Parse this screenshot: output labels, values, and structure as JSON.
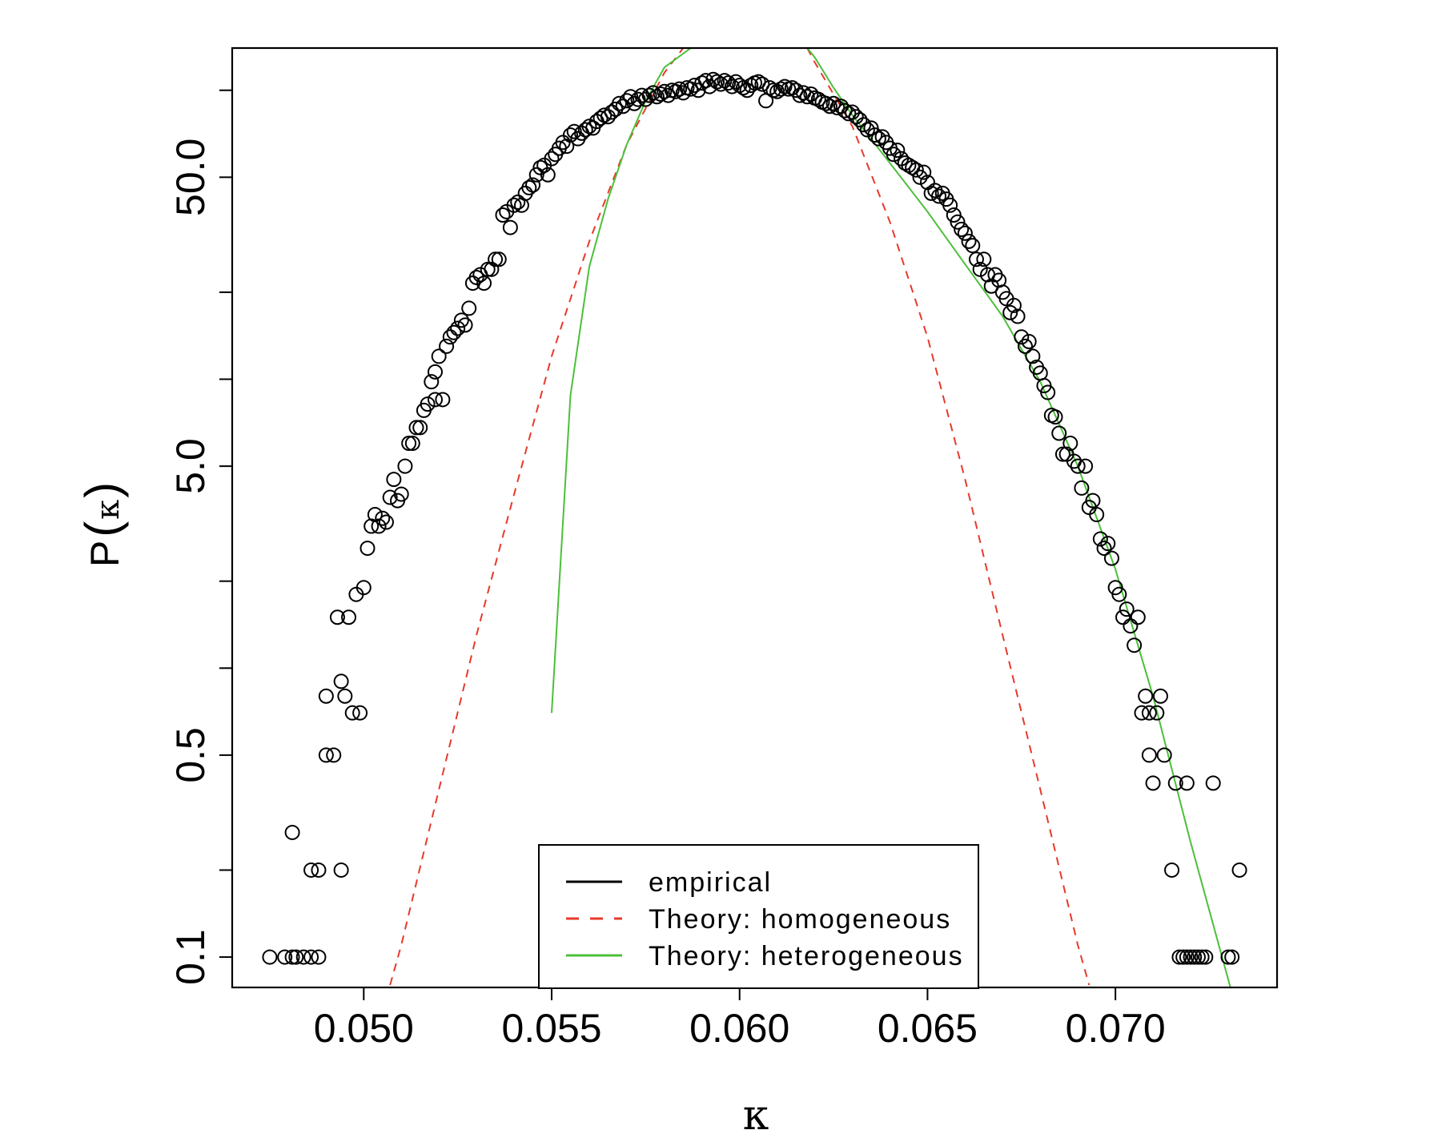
{
  "chart_data": {
    "type": "scatter",
    "title": "",
    "xlabel": "κ",
    "ylabel": "P(κ)",
    "ylabel_parts": {
      "prefix": "P",
      "open": "(",
      "symbol": "κ",
      "close": ")"
    },
    "x_scale": "linear",
    "y_scale": "log",
    "xlim": [
      0.0465,
      0.0743
    ],
    "ylim": [
      0.0785,
      140
    ],
    "x_ticks": [
      0.05,
      0.055,
      0.06,
      0.065,
      0.07
    ],
    "x_tick_labels": [
      "0.050",
      "0.055",
      "0.060",
      "0.065",
      "0.070"
    ],
    "y_ticks": [
      0.1,
      0.2,
      0.5,
      1,
      2,
      5,
      10,
      20,
      50,
      100
    ],
    "y_tick_labels": [
      "0.1",
      "",
      "0.5",
      "",
      "",
      "5.0",
      "",
      "",
      "50.0",
      ""
    ],
    "legend_position": "bottom-center",
    "series": [
      {
        "name": "empirical",
        "label": "empirical",
        "color": "#000000",
        "style": "open-circle",
        "points": [
          [
            0.0475,
            0.1
          ],
          [
            0.0479,
            0.1
          ],
          [
            0.0481,
            0.1
          ],
          [
            0.0482,
            0.1
          ],
          [
            0.0484,
            0.1
          ],
          [
            0.0486,
            0.1
          ],
          [
            0.0488,
            0.1
          ],
          [
            0.0481,
            0.27
          ],
          [
            0.0486,
            0.2
          ],
          [
            0.0488,
            0.2
          ],
          [
            0.0494,
            0.2
          ],
          [
            0.049,
            0.8
          ],
          [
            0.049,
            0.5
          ],
          [
            0.0492,
            0.5
          ],
          [
            0.0493,
            1.5
          ],
          [
            0.0494,
            0.9
          ],
          [
            0.0495,
            0.8
          ],
          [
            0.0496,
            1.5
          ],
          [
            0.0497,
            0.7
          ],
          [
            0.0498,
            1.8
          ],
          [
            0.0499,
            0.7
          ],
          [
            0.05,
            1.9
          ],
          [
            0.0501,
            2.6
          ],
          [
            0.0502,
            3.1
          ],
          [
            0.0503,
            3.4
          ],
          [
            0.0504,
            3.1
          ],
          [
            0.0505,
            3.3
          ],
          [
            0.0506,
            3.2
          ],
          [
            0.0507,
            3.9
          ],
          [
            0.0508,
            4.5
          ],
          [
            0.0509,
            3.8
          ],
          [
            0.051,
            4
          ],
          [
            0.0511,
            5
          ],
          [
            0.0512,
            6
          ],
          [
            0.0513,
            6
          ],
          [
            0.0514,
            6.8
          ],
          [
            0.0515,
            6.8
          ],
          [
            0.0516,
            7.8
          ],
          [
            0.0517,
            8.2
          ],
          [
            0.0518,
            9.8
          ],
          [
            0.0519,
            10.6
          ],
          [
            0.0519,
            8.5
          ],
          [
            0.052,
            12
          ],
          [
            0.0521,
            8.5
          ],
          [
            0.0522,
            13
          ],
          [
            0.0523,
            14
          ],
          [
            0.0524,
            14.5
          ],
          [
            0.0525,
            15
          ],
          [
            0.0526,
            16
          ],
          [
            0.0527,
            15.4
          ],
          [
            0.0528,
            17.6
          ],
          [
            0.0529,
            21.5
          ],
          [
            0.053,
            22.5
          ],
          [
            0.0531,
            23
          ],
          [
            0.0532,
            21.5
          ],
          [
            0.0533,
            24
          ],
          [
            0.0534,
            24
          ],
          [
            0.0535,
            26
          ],
          [
            0.0536,
            26
          ],
          [
            0.0537,
            37
          ],
          [
            0.0538,
            38
          ],
          [
            0.0539,
            33.5
          ],
          [
            0.054,
            40
          ],
          [
            0.0541,
            41
          ],
          [
            0.0542,
            40
          ],
          [
            0.0543,
            44
          ],
          [
            0.0544,
            46
          ],
          [
            0.0545,
            47
          ],
          [
            0.0546,
            51
          ],
          [
            0.0547,
            54
          ],
          [
            0.0548,
            55
          ],
          [
            0.0549,
            51
          ],
          [
            0.055,
            58
          ],
          [
            0.0551,
            60
          ],
          [
            0.0552,
            63
          ],
          [
            0.0553,
            66
          ],
          [
            0.0554,
            64
          ],
          [
            0.0555,
            70
          ],
          [
            0.0556,
            72
          ],
          [
            0.0557,
            68
          ],
          [
            0.0558,
            71
          ],
          [
            0.0559,
            73
          ],
          [
            0.056,
            75
          ],
          [
            0.0561,
            74
          ],
          [
            0.0562,
            78
          ],
          [
            0.0563,
            80
          ],
          [
            0.0564,
            82
          ],
          [
            0.0565,
            81
          ],
          [
            0.0566,
            84
          ],
          [
            0.0567,
            86
          ],
          [
            0.0568,
            90
          ],
          [
            0.0569,
            88
          ],
          [
            0.057,
            92
          ],
          [
            0.0571,
            95
          ],
          [
            0.0572,
            90
          ],
          [
            0.0573,
            93
          ],
          [
            0.0574,
            96
          ],
          [
            0.0575,
            93
          ],
          [
            0.0576,
            96
          ],
          [
            0.0577,
            98
          ],
          [
            0.0578,
            95
          ],
          [
            0.0579,
            97
          ],
          [
            0.058,
            99
          ],
          [
            0.0581,
            96
          ],
          [
            0.0582,
            100
          ],
          [
            0.0583,
            99
          ],
          [
            0.0584,
            101
          ],
          [
            0.0585,
            98
          ],
          [
            0.0586,
            102
          ],
          [
            0.0587,
            101
          ],
          [
            0.0588,
            104
          ],
          [
            0.0589,
            100
          ],
          [
            0.059,
            106
          ],
          [
            0.0591,
            108
          ],
          [
            0.0592,
            103
          ],
          [
            0.0593,
            109
          ],
          [
            0.0594,
            107
          ],
          [
            0.0595,
            105
          ],
          [
            0.0596,
            108
          ],
          [
            0.0597,
            106
          ],
          [
            0.0598,
            103
          ],
          [
            0.0599,
            107
          ],
          [
            0.06,
            104
          ],
          [
            0.0601,
            102
          ],
          [
            0.0602,
            100
          ],
          [
            0.0603,
            104
          ],
          [
            0.0604,
            106
          ],
          [
            0.0605,
            107
          ],
          [
            0.0606,
            105
          ],
          [
            0.0607,
            92
          ],
          [
            0.0608,
            102
          ],
          [
            0.0609,
            100
          ],
          [
            0.061,
            99
          ],
          [
            0.0611,
            101
          ],
          [
            0.0612,
            103
          ],
          [
            0.0613,
            101
          ],
          [
            0.0614,
            102
          ],
          [
            0.0615,
            100
          ],
          [
            0.0616,
            96
          ],
          [
            0.0617,
            98
          ],
          [
            0.0618,
            95
          ],
          [
            0.0619,
            97
          ],
          [
            0.062,
            94
          ],
          [
            0.0621,
            93
          ],
          [
            0.0622,
            91
          ],
          [
            0.0623,
            90
          ],
          [
            0.0624,
            88
          ],
          [
            0.0625,
            90
          ],
          [
            0.0626,
            87
          ],
          [
            0.0627,
            88
          ],
          [
            0.0628,
            85
          ],
          [
            0.0629,
            83
          ],
          [
            0.063,
            84
          ],
          [
            0.0631,
            81
          ],
          [
            0.0632,
            79
          ],
          [
            0.0633,
            76
          ],
          [
            0.0634,
            73
          ],
          [
            0.0635,
            74
          ],
          [
            0.0636,
            70
          ],
          [
            0.0637,
            68
          ],
          [
            0.0638,
            69
          ],
          [
            0.0639,
            66
          ],
          [
            0.064,
            63
          ],
          [
            0.0641,
            60
          ],
          [
            0.0642,
            62
          ],
          [
            0.0643,
            58
          ],
          [
            0.0644,
            56
          ],
          [
            0.0645,
            55
          ],
          [
            0.0646,
            54
          ],
          [
            0.0647,
            53
          ],
          [
            0.0648,
            50
          ],
          [
            0.0649,
            52
          ],
          [
            0.065,
            48
          ],
          [
            0.0651,
            44
          ],
          [
            0.0652,
            45
          ],
          [
            0.0653,
            43
          ],
          [
            0.0654,
            44
          ],
          [
            0.0655,
            42
          ],
          [
            0.0656,
            40
          ],
          [
            0.0657,
            37
          ],
          [
            0.0658,
            35
          ],
          [
            0.0659,
            33
          ],
          [
            0.066,
            32
          ],
          [
            0.0661,
            30
          ],
          [
            0.0662,
            29
          ],
          [
            0.0663,
            26
          ],
          [
            0.0664,
            24
          ],
          [
            0.0665,
            26
          ],
          [
            0.0666,
            23
          ],
          [
            0.0667,
            21
          ],
          [
            0.0668,
            23
          ],
          [
            0.0669,
            22
          ],
          [
            0.067,
            20
          ],
          [
            0.0671,
            19
          ],
          [
            0.0672,
            17
          ],
          [
            0.0673,
            18
          ],
          [
            0.0674,
            16.5
          ],
          [
            0.0675,
            14
          ],
          [
            0.0676,
            13
          ],
          [
            0.0677,
            13.5
          ],
          [
            0.0678,
            12
          ],
          [
            0.0679,
            11
          ],
          [
            0.068,
            10.5
          ],
          [
            0.0681,
            9.5
          ],
          [
            0.0682,
            9
          ],
          [
            0.0683,
            7.5
          ],
          [
            0.0684,
            7.4
          ],
          [
            0.0685,
            6.5
          ],
          [
            0.0686,
            5.5
          ],
          [
            0.0687,
            5.5
          ],
          [
            0.0688,
            6
          ],
          [
            0.0689,
            5.2
          ],
          [
            0.069,
            5
          ],
          [
            0.0691,
            4.2
          ],
          [
            0.0692,
            5
          ],
          [
            0.0693,
            3.6
          ],
          [
            0.0694,
            3.8
          ],
          [
            0.0695,
            3.4
          ],
          [
            0.0696,
            2.8
          ],
          [
            0.0697,
            2.6
          ],
          [
            0.0698,
            2.7
          ],
          [
            0.0699,
            2.4
          ],
          [
            0.07,
            1.9
          ],
          [
            0.0701,
            1.8
          ],
          [
            0.0702,
            1.5
          ],
          [
            0.0703,
            1.6
          ],
          [
            0.0704,
            1.4
          ],
          [
            0.0705,
            1.2
          ],
          [
            0.0706,
            1.5
          ],
          [
            0.0707,
            0.7
          ],
          [
            0.0708,
            0.8
          ],
          [
            0.0709,
            0.7
          ],
          [
            0.0709,
            0.5
          ],
          [
            0.071,
            0.4
          ],
          [
            0.0711,
            0.7
          ],
          [
            0.0712,
            0.8
          ],
          [
            0.0713,
            0.5
          ],
          [
            0.0715,
            0.2
          ],
          [
            0.0716,
            0.4
          ],
          [
            0.0717,
            0.1
          ],
          [
            0.0718,
            0.1
          ],
          [
            0.0719,
            0.4
          ],
          [
            0.0719,
            0.1
          ],
          [
            0.072,
            0.1
          ],
          [
            0.0721,
            0.1
          ],
          [
            0.0722,
            0.1
          ],
          [
            0.0723,
            0.1
          ],
          [
            0.0724,
            0.1
          ],
          [
            0.0726,
            0.4
          ],
          [
            0.073,
            0.1
          ],
          [
            0.0731,
            0.1
          ],
          [
            0.0733,
            0.2
          ]
        ]
      },
      {
        "name": "Theory: homogeneous",
        "label": "Theory: homogeneous",
        "color": "#e8392b",
        "style": "dashed-line",
        "points": [
          [
            0.0507,
            0.08
          ],
          [
            0.051,
            0.11
          ],
          [
            0.052,
            0.38
          ],
          [
            0.053,
            1.3
          ],
          [
            0.054,
            4
          ],
          [
            0.055,
            12
          ],
          [
            0.056,
            30
          ],
          [
            0.057,
            65
          ],
          [
            0.058,
            115
          ],
          [
            0.0585,
            140
          ],
          [
            0.0618,
            140
          ],
          [
            0.062,
            125
          ],
          [
            0.063,
            75
          ],
          [
            0.064,
            35
          ],
          [
            0.065,
            14
          ],
          [
            0.066,
            4.5
          ],
          [
            0.067,
            1.3
          ],
          [
            0.068,
            0.38
          ],
          [
            0.069,
            0.11
          ],
          [
            0.0693,
            0.08
          ]
        ]
      },
      {
        "name": "Theory: heterogeneous",
        "label": "Theory: heterogeneous",
        "color": "#4cbf3a",
        "style": "solid-line",
        "points": [
          [
            0.055,
            0.7
          ],
          [
            0.0555,
            8.8
          ],
          [
            0.056,
            24.5
          ],
          [
            0.0565,
            42
          ],
          [
            0.057,
            65
          ],
          [
            0.0575,
            92
          ],
          [
            0.058,
            120
          ],
          [
            0.0587,
            140
          ],
          [
            0.0618,
            140
          ],
          [
            0.062,
            130
          ],
          [
            0.0625,
            102
          ],
          [
            0.063,
            82
          ],
          [
            0.064,
            56
          ],
          [
            0.065,
            38
          ],
          [
            0.066,
            25
          ],
          [
            0.067,
            16.5
          ],
          [
            0.068,
            9.8
          ],
          [
            0.069,
            5
          ],
          [
            0.07,
            2.2
          ],
          [
            0.071,
            0.8
          ],
          [
            0.072,
            0.25
          ],
          [
            0.0731,
            0.075
          ]
        ]
      }
    ]
  }
}
